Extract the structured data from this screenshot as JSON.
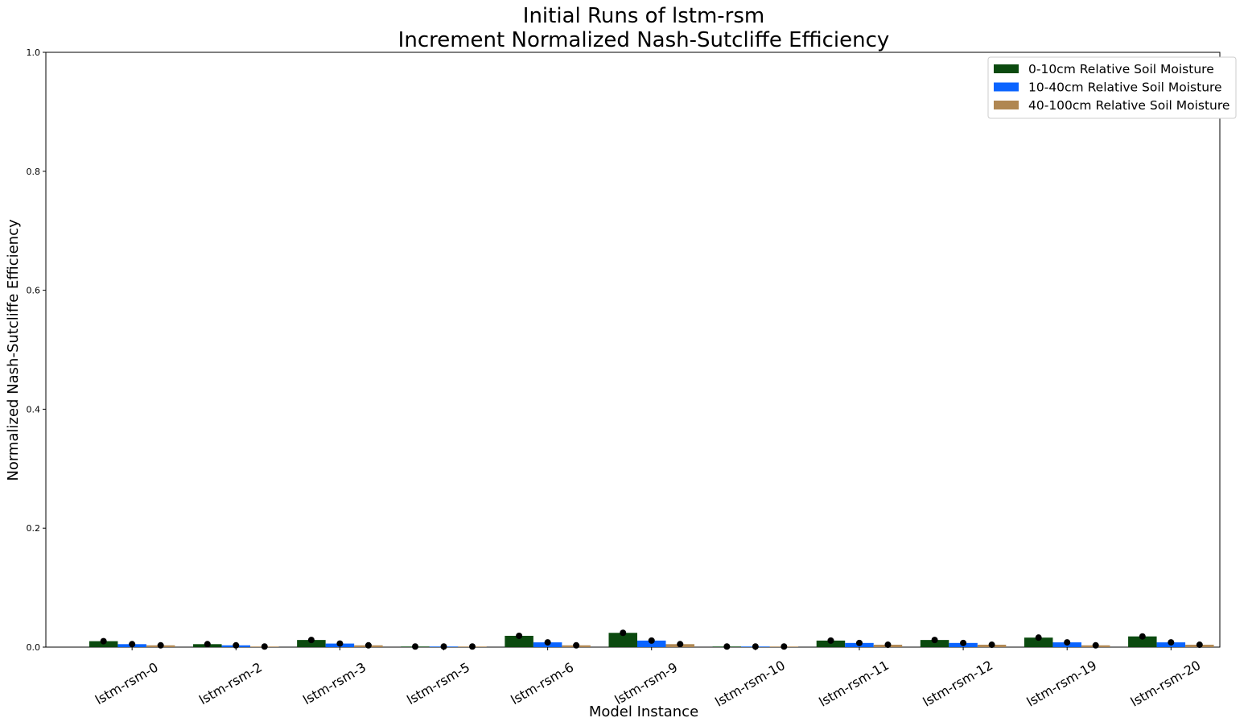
{
  "chart_data": {
    "type": "bar",
    "title_line1": "Initial Runs of lstm-rsm",
    "title_line2": "Increment Normalized Nash-Sutcliffe Efficiency",
    "xlabel": "Model Instance",
    "ylabel": "Normalized Nash-Sutcliffe Efficiency",
    "ylim": [
      0,
      1
    ],
    "yticks": [
      "0.0",
      "0.2",
      "0.4",
      "0.6",
      "0.8",
      "1.0"
    ],
    "categories": [
      "lstm-rsm-0",
      "lstm-rsm-2",
      "lstm-rsm-3",
      "lstm-rsm-5",
      "lstm-rsm-6",
      "lstm-rsm-9",
      "lstm-rsm-10",
      "lstm-rsm-11",
      "lstm-rsm-12",
      "lstm-rsm-19",
      "lstm-rsm-20"
    ],
    "series": [
      {
        "name": "0-10cm Relative Soil Moisture",
        "color": "#0b4a0f",
        "values": [
          0.01,
          0.005,
          0.012,
          0.001,
          0.019,
          0.024,
          0.001,
          0.011,
          0.012,
          0.016,
          0.018
        ]
      },
      {
        "name": "10-40cm Relative Soil Moisture",
        "color": "#0a64ff",
        "values": [
          0.005,
          0.003,
          0.006,
          0.001,
          0.008,
          0.011,
          0.001,
          0.007,
          0.007,
          0.008,
          0.008
        ]
      },
      {
        "name": "40-100cm Relative Soil Moisture",
        "color": "#b08752",
        "values": [
          0.003,
          0.001,
          0.003,
          0.001,
          0.003,
          0.005,
          0.001,
          0.004,
          0.004,
          0.003,
          0.004
        ]
      }
    ],
    "markers": "black dots at bar tops",
    "legend_position": "upper right",
    "grid": false
  }
}
